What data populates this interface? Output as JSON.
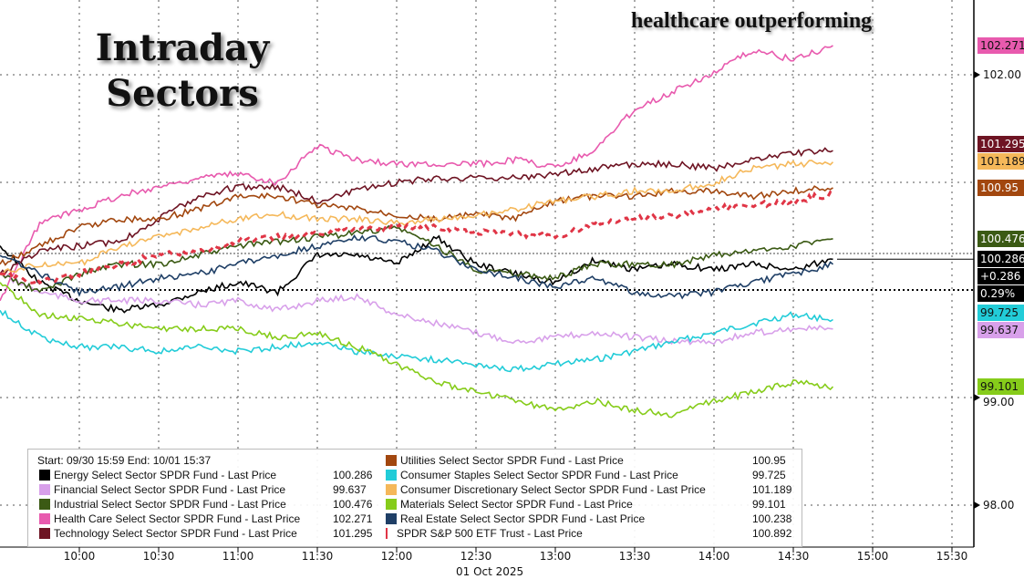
{
  "title": "Intraday Sectors",
  "subtitle": "healthcare outperforming",
  "chart_data": {
    "type": "line",
    "title": "Intraday Sectors",
    "subtitle": "healthcare outperforming",
    "xlabel": "01 Oct 2025",
    "ylabel": "",
    "x": [
      "09:30",
      "09:45",
      "10:00",
      "10:15",
      "10:30",
      "10:45",
      "11:00",
      "11:15",
      "11:30",
      "11:45",
      "12:00",
      "12:15",
      "12:30",
      "12:45",
      "13:00",
      "13:15",
      "13:30",
      "13:45",
      "14:00",
      "14:15",
      "14:30",
      "14:45"
    ],
    "x_ticks": [
      "10:00",
      "10:30",
      "11:00",
      "11:30",
      "12:00",
      "12:30",
      "13:00",
      "13:30",
      "14:00",
      "14:30",
      "15:00",
      "15:30"
    ],
    "y_ticks": [
      "102.00",
      "99.00",
      "98.00"
    ],
    "ylim": [
      97.6,
      102.7
    ],
    "legend_header": "Start: 09/30 15:59 End: 10/01 15:37",
    "legend_placement": "bottom-left",
    "series": [
      {
        "name": "Energy Select Sector SPDR Fund - Last Price",
        "last": "100.286",
        "color": "#000000",
        "values": [
          100.41,
          100.07,
          99.9,
          99.81,
          99.86,
          99.98,
          100.07,
          99.98,
          100.32,
          100.32,
          100.24,
          100.49,
          100.24,
          100.15,
          100.07,
          100.28,
          100.19,
          100.24,
          100.19,
          100.24,
          100.19,
          100.286
        ]
      },
      {
        "name": "Financial Select Sector SPDR Fund - Last Price",
        "last": "99.637",
        "color": "#d8a0ea",
        "values": [
          100.15,
          99.98,
          99.9,
          99.9,
          99.9,
          99.86,
          99.9,
          99.81,
          99.9,
          99.94,
          99.77,
          99.69,
          99.6,
          99.52,
          99.56,
          99.6,
          99.56,
          99.52,
          99.52,
          99.6,
          99.64,
          99.637
        ]
      },
      {
        "name": "Industrial Select Sector SPDR Fund - Last Price",
        "last": "100.476",
        "color": "#3b5a14",
        "values": [
          100.15,
          99.98,
          100.15,
          100.24,
          100.24,
          100.32,
          100.41,
          100.45,
          100.49,
          100.53,
          100.58,
          100.41,
          100.19,
          100.15,
          100.11,
          100.24,
          100.24,
          100.24,
          100.32,
          100.36,
          100.41,
          100.476
        ]
      },
      {
        "name": "Health Care Select Sector SPDR Fund - Last Price",
        "last": "102.271",
        "color": "#e85aae",
        "values": [
          99.9,
          100.62,
          100.75,
          100.87,
          100.96,
          101.04,
          101.08,
          101.0,
          101.34,
          101.21,
          101.17,
          101.17,
          101.17,
          101.21,
          101.14,
          101.3,
          101.68,
          101.85,
          102.02,
          102.23,
          102.14,
          102.271
        ]
      },
      {
        "name": "Technology Select Sector SPDR Fund - Last Price",
        "last": "101.295",
        "color": "#6e1423",
        "values": [
          100.15,
          100.36,
          100.41,
          100.45,
          100.66,
          100.87,
          100.96,
          100.96,
          100.83,
          100.92,
          101.0,
          101.04,
          101.04,
          101.04,
          101.08,
          101.13,
          101.17,
          101.17,
          101.13,
          101.21,
          101.27,
          101.295
        ]
      },
      {
        "name": "Utilities Select Sector SPDR Fund - Last Price",
        "last": "100.95",
        "color": "#a2470f",
        "values": [
          100.24,
          100.41,
          100.58,
          100.66,
          100.66,
          100.75,
          100.87,
          100.87,
          100.79,
          100.75,
          100.7,
          100.66,
          100.7,
          100.66,
          100.83,
          100.87,
          100.87,
          100.92,
          100.92,
          100.87,
          100.92,
          100.95
        ]
      },
      {
        "name": "Consumer Staples Select Sector SPDR Fund - Last Price",
        "last": "99.725",
        "color": "#22ccd8",
        "values": [
          99.81,
          99.56,
          99.47,
          99.47,
          99.43,
          99.47,
          99.43,
          99.47,
          99.52,
          99.43,
          99.39,
          99.35,
          99.31,
          99.26,
          99.31,
          99.35,
          99.43,
          99.52,
          99.6,
          99.69,
          99.77,
          99.725
        ]
      },
      {
        "name": "Consumer Discretionary Select Sector SPDR Fund - Last Price",
        "last": "101.189",
        "color": "#f5b85a",
        "values": [
          100.15,
          100.24,
          100.24,
          100.41,
          100.49,
          100.58,
          100.66,
          100.7,
          100.66,
          100.66,
          100.62,
          100.66,
          100.7,
          100.75,
          100.83,
          100.87,
          100.92,
          100.92,
          101.0,
          101.13,
          101.17,
          101.189
        ]
      },
      {
        "name": "Materials Select Sector SPDR Fund - Last Price",
        "last": "99.101",
        "color": "#86cc1a",
        "values": [
          100.07,
          99.77,
          99.73,
          99.69,
          99.64,
          99.64,
          99.64,
          99.56,
          99.6,
          99.47,
          99.31,
          99.14,
          99.05,
          98.97,
          98.88,
          98.97,
          98.88,
          98.84,
          98.97,
          99.05,
          99.14,
          99.101
        ]
      },
      {
        "name": "Real Estate Select Sector SPDR Fund - Last Price",
        "last": "100.238",
        "color": "#1f3f66",
        "values": [
          100.32,
          100.15,
          99.98,
          100.03,
          100.11,
          100.15,
          100.24,
          100.32,
          100.41,
          100.49,
          100.45,
          100.36,
          100.19,
          100.11,
          100.03,
          100.11,
          99.98,
          99.94,
          99.98,
          100.07,
          100.15,
          100.238
        ]
      },
      {
        "name": "SPDR S&P 500 ETF Trust - Last Price",
        "last": "100.892",
        "color": "#e03546",
        "dashed": true,
        "values": [
          100.15,
          100.07,
          100.15,
          100.24,
          100.32,
          100.36,
          100.45,
          100.49,
          100.53,
          100.58,
          100.58,
          100.58,
          100.53,
          100.53,
          100.49,
          100.62,
          100.66,
          100.7,
          100.75,
          100.79,
          100.83,
          100.89
        ]
      }
    ],
    "tags": [
      {
        "label": "102.271",
        "color": "#e85aae",
        "value": 102.271,
        "dark": false
      },
      {
        "label": "101.295",
        "color": "#6e1423",
        "value": 101.36,
        "dark": true
      },
      {
        "label": "101.189",
        "color": "#f5b85a",
        "value": 101.2,
        "dark": false
      },
      {
        "label": "100.95",
        "color": "#a2470f",
        "value": 100.95,
        "dark": true
      },
      {
        "label": "100.476",
        "color": "#3b5a14",
        "value": 100.476,
        "dark": true
      },
      {
        "label": "100.286",
        "color": "#000000",
        "value": 100.286,
        "dark": true
      },
      {
        "label": "+0.286",
        "color": "#000000",
        "value": 100.14,
        "dark": true
      },
      {
        "label": "0.29%",
        "color": "#000000",
        "value": 100.0,
        "dark": true
      },
      {
        "label": "99.725",
        "color": "#22ccd8",
        "value": 99.79,
        "dark": false
      },
      {
        "label": "99.637",
        "color": "#d8a0ea",
        "value": 99.637,
        "dark": false
      },
      {
        "label": "99.101",
        "color": "#86cc1a",
        "value": 99.101,
        "dark": false
      }
    ]
  }
}
